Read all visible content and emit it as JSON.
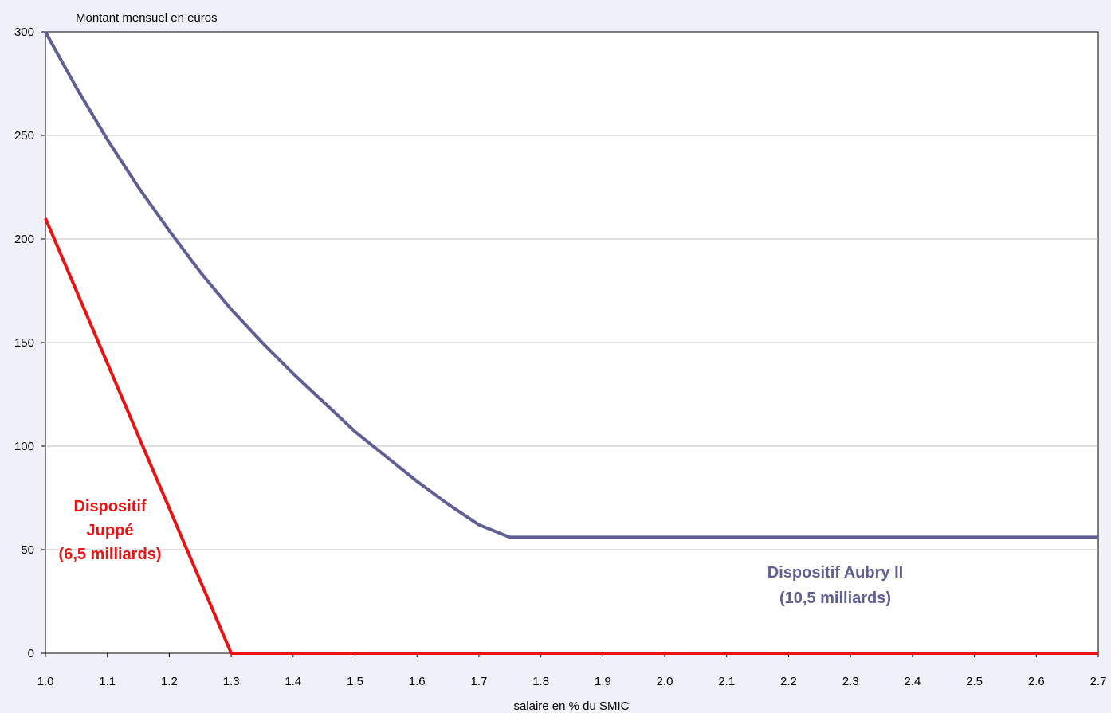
{
  "chart_data": {
    "type": "line",
    "ylabel": "Montant mensuel en euros",
    "xlabel": "salaire en % du SMIC",
    "xlim": [
      1.0,
      2.7
    ],
    "ylim": [
      0,
      300
    ],
    "x_ticks": [
      "1.0",
      "1.1",
      "1.2",
      "1.3",
      "1.4",
      "1.5",
      "1.6",
      "1.7",
      "1.8",
      "1.9",
      "2.0",
      "2.1",
      "2.2",
      "2.3",
      "2.4",
      "2.5",
      "2.6",
      "2.7"
    ],
    "y_ticks": [
      "0",
      "50",
      "100",
      "150",
      "200",
      "250",
      "300"
    ],
    "grid": true,
    "series": [
      {
        "key": "aubry",
        "color": "#5f5f96",
        "points": [
          [
            1.0,
            300
          ],
          [
            1.05,
            273
          ],
          [
            1.1,
            248
          ],
          [
            1.15,
            225
          ],
          [
            1.2,
            204
          ],
          [
            1.25,
            184
          ],
          [
            1.3,
            166
          ],
          [
            1.35,
            150
          ],
          [
            1.4,
            135
          ],
          [
            1.45,
            121
          ],
          [
            1.5,
            107
          ],
          [
            1.55,
            95
          ],
          [
            1.6,
            83
          ],
          [
            1.65,
            72
          ],
          [
            1.7,
            62
          ],
          [
            1.75,
            56
          ],
          [
            2.7,
            56
          ]
        ]
      },
      {
        "key": "juppe",
        "color": "#ee1111",
        "points": [
          [
            1.0,
            210
          ],
          [
            1.3,
            0
          ],
          [
            2.7,
            0
          ]
        ]
      }
    ],
    "annotations": {
      "juppe": [
        "Dispositif",
        "Juppé",
        "(6,5 milliards)"
      ],
      "aubry": [
        "Dispositif Aubry II",
        "(10,5 milliards)"
      ]
    }
  }
}
